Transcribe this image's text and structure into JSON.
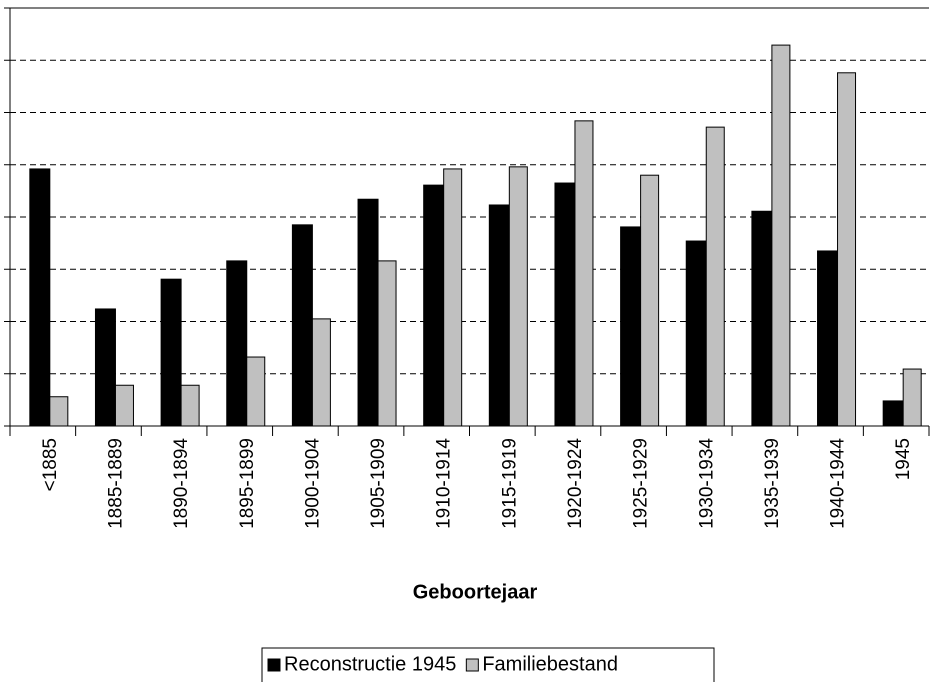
{
  "chart_data": {
    "type": "bar",
    "x_label": "Geboortejaar",
    "categories": [
      "<1885",
      "1885-1889",
      "1890-1894",
      "1895-1899",
      "1900-1904",
      "1905-1909",
      "1910-1914",
      "1915-1919",
      "1920-1924",
      "1925-1929",
      "1930-1934",
      "1935-1939",
      "1940-1944",
      "1945"
    ],
    "series": [
      {
        "name": "Reconstructie 1945",
        "color": "#000000",
        "values": [
          4.92,
          2.24,
          2.81,
          3.16,
          3.85,
          4.34,
          4.61,
          4.23,
          4.65,
          3.81,
          3.54,
          4.11,
          3.35,
          0.48
        ]
      },
      {
        "name": "Familiebestand",
        "color": "#c0c0c0",
        "values": [
          0.56,
          0.78,
          0.78,
          1.32,
          2.05,
          3.16,
          4.92,
          4.96,
          5.84,
          4.8,
          5.72,
          7.29,
          6.76,
          1.09
        ]
      }
    ],
    "ylim": [
      0,
      8
    ],
    "yticks": [
      0,
      1,
      2,
      3,
      4,
      5,
      6,
      7,
      8
    ],
    "grid": true
  }
}
